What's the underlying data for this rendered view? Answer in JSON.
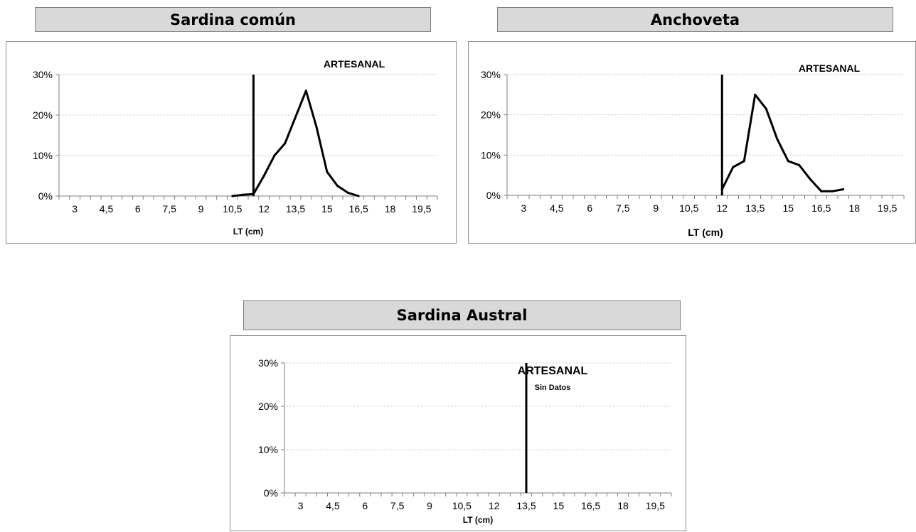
{
  "chart_data": [
    {
      "type": "line",
      "title": "Sardina común",
      "annotation": "ARTESANAL",
      "note": "",
      "xlabel": "LT (cm)",
      "ylabel": "",
      "x_ticks": [
        "3",
        "4,5",
        "6",
        "7,5",
        "9",
        "10,5",
        "12",
        "13,5",
        "15",
        "16,5",
        "18",
        "19,5"
      ],
      "xlim": [
        2.25,
        20.25
      ],
      "ylim": [
        0,
        30
      ],
      "y_ticks": [
        "0%",
        "10%",
        "20%",
        "30%"
      ],
      "grid": true,
      "vertical_line_x": 11.5,
      "series": [
        {
          "x": [
            10.5,
            11,
            11.5,
            12,
            12.5,
            13,
            13.5,
            14,
            14.5,
            15,
            15.5,
            16,
            16.5
          ],
          "y": [
            0,
            0.3,
            0.5,
            5,
            10,
            13,
            19.5,
            26,
            17,
            6,
            2.5,
            0.8,
            0
          ]
        }
      ]
    },
    {
      "type": "line",
      "title": "Anchoveta",
      "annotation": "ARTESANAL",
      "note": "",
      "xlabel": "LT (cm)",
      "ylabel": "",
      "x_ticks": [
        "3",
        "4,5",
        "6",
        "7,5",
        "9",
        "10,5",
        "12",
        "13,5",
        "15",
        "16,5",
        "18",
        "19,5"
      ],
      "xlim": [
        2.25,
        20.25
      ],
      "ylim": [
        0,
        30
      ],
      "y_ticks": [
        "0%",
        "10%",
        "20%",
        "30%"
      ],
      "grid": true,
      "vertical_line_x": 12,
      "series": [
        {
          "x": [
            12,
            12.5,
            13,
            13.5,
            14,
            14.5,
            15,
            15.5,
            16,
            16.5,
            17,
            17.5
          ],
          "y": [
            1.5,
            7,
            8.5,
            25,
            21.5,
            14,
            8.5,
            7.5,
            4,
            1,
            1,
            1.5
          ]
        }
      ]
    },
    {
      "type": "line",
      "title": "Sardina Austral",
      "annotation": "ARTESANAL",
      "note": "Sin Datos",
      "xlabel": "LT (cm)",
      "ylabel": "",
      "x_ticks": [
        "3",
        "4,5",
        "6",
        "7,5",
        "9",
        "10,5",
        "12",
        "13,5",
        "15",
        "16,5",
        "18",
        "19,5"
      ],
      "xlim": [
        2.25,
        20.25
      ],
      "ylim": [
        0,
        30
      ],
      "y_ticks": [
        "0%",
        "10%",
        "20%",
        "30%"
      ],
      "grid": true,
      "vertical_line_x": 13.5,
      "series": []
    }
  ]
}
